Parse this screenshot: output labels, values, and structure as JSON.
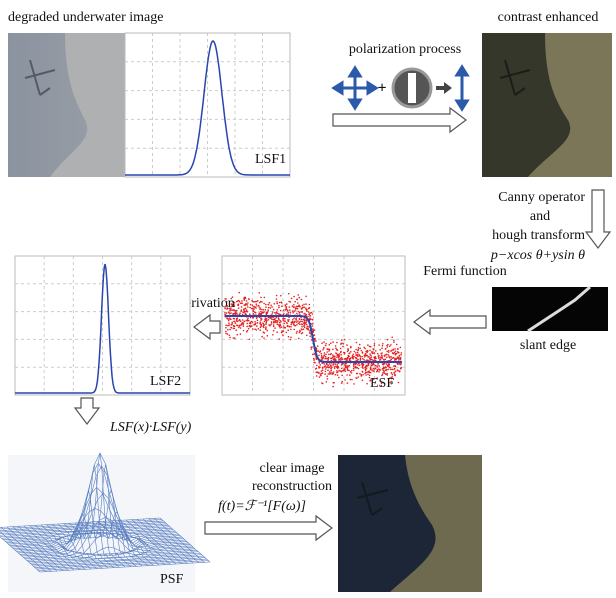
{
  "input": {
    "title": "degraded underwater image",
    "plot_label": "LSF1"
  },
  "polarization": {
    "label": "polarization process"
  },
  "enhanced": {
    "title": "contrast enhanced"
  },
  "edge_detection": {
    "lines": [
      "Canny operator",
      "and",
      "hough transform",
      "p−xcos θ+ysin θ"
    ]
  },
  "fermi": {
    "label": "Fermi function"
  },
  "slant": {
    "label": "slant edge"
  },
  "esf": {
    "plot_label": "ESF"
  },
  "derivation": {
    "label": "derivation"
  },
  "lsf2": {
    "plot_label": "LSF2"
  },
  "product": {
    "label": "LSF(x)·LSF(y)"
  },
  "psf": {
    "plot_label": "PSF"
  },
  "reconstruction": {
    "lines": [
      "clear image",
      "reconstruction",
      "f(t)=ℱ⁻¹[F(ω)]"
    ]
  }
}
